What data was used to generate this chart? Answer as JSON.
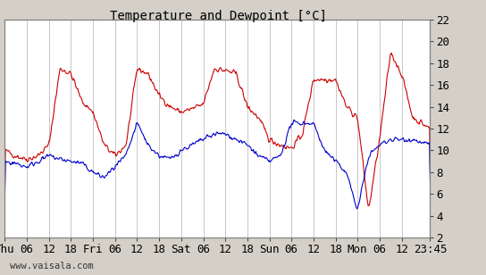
{
  "title": "Temperature and Dewpoint [°C]",
  "ylim": [
    2,
    22
  ],
  "yticks": [
    2,
    4,
    6,
    8,
    10,
    12,
    14,
    16,
    18,
    20,
    22
  ],
  "total_hours": 115.75,
  "x_tick_labels": [
    "Thu",
    "06",
    "12",
    "18",
    "Fri",
    "06",
    "12",
    "18",
    "Sat",
    "06",
    "12",
    "18",
    "Sun",
    "06",
    "12",
    "18",
    "Mon",
    "06",
    "12",
    "23:45"
  ],
  "x_tick_positions": [
    0,
    6,
    12,
    18,
    24,
    30,
    36,
    42,
    48,
    54,
    60,
    66,
    72,
    78,
    84,
    90,
    96,
    102,
    108,
    115.75
  ],
  "bg_color": "#d4d0c8",
  "plot_bg_color": "#ffffff",
  "grid_color": "#b0b0b0",
  "temp_color": "#cc0000",
  "dewp_color": "#0000cc",
  "watermark": "www.vaisala.com",
  "line_width": 0.8,
  "font_size": 10,
  "tick_font_size": 9,
  "key_times_t": [
    0,
    3,
    6,
    9,
    12,
    15,
    18,
    21,
    24,
    27,
    30,
    33,
    36,
    39,
    42,
    45,
    48,
    51,
    54,
    57,
    60,
    63,
    66,
    69,
    72,
    75,
    78,
    81,
    84,
    87,
    90,
    93,
    96,
    99,
    102,
    105,
    108,
    111,
    115.75
  ],
  "key_vals_t": [
    10.0,
    9.5,
    9.2,
    9.5,
    10.5,
    17.5,
    17.0,
    14.5,
    13.5,
    10.5,
    9.5,
    10.5,
    17.5,
    17.0,
    15.0,
    14.0,
    13.5,
    13.8,
    14.2,
    17.5,
    17.3,
    17.0,
    14.0,
    13.0,
    11.0,
    10.5,
    10.2,
    11.5,
    16.5,
    16.5,
    16.5,
    14.0,
    13.0,
    4.5,
    11.0,
    19.0,
    17.0,
    13.0,
    12.0
  ],
  "key_times_d": [
    0,
    3,
    6,
    9,
    12,
    15,
    18,
    21,
    24,
    27,
    30,
    33,
    36,
    39,
    42,
    45,
    48,
    51,
    54,
    57,
    60,
    63,
    66,
    69,
    72,
    75,
    78,
    81,
    84,
    87,
    90,
    93,
    96,
    99,
    102,
    105,
    108,
    111,
    115.75
  ],
  "key_vals_d": [
    9.0,
    8.8,
    8.5,
    9.0,
    9.5,
    9.2,
    9.0,
    8.8,
    8.0,
    7.5,
    8.5,
    9.5,
    12.5,
    10.5,
    9.5,
    9.2,
    10.0,
    10.5,
    11.0,
    11.5,
    11.5,
    11.0,
    10.5,
    9.5,
    9.0,
    9.5,
    12.5,
    12.5,
    12.5,
    10.0,
    9.0,
    8.0,
    4.5,
    9.5,
    10.5,
    11.0,
    11.0,
    11.0,
    10.5
  ]
}
